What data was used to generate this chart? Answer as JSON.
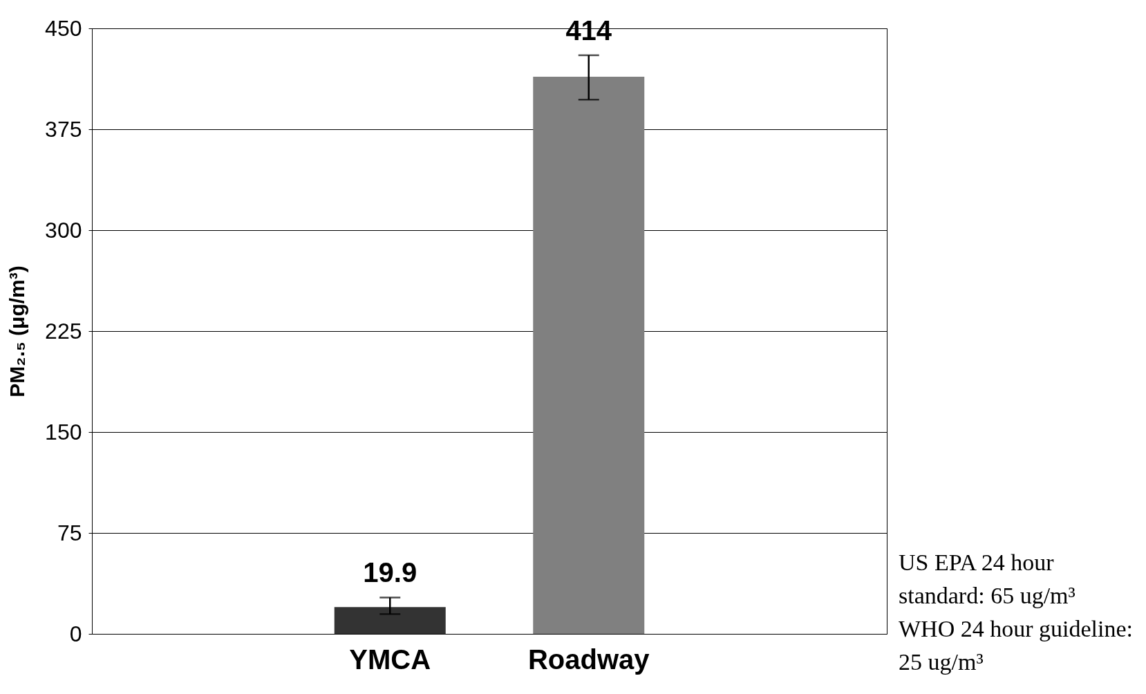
{
  "chart_data": {
    "type": "bar",
    "ylabel": "PM₂.₅ (μg/m³)",
    "categories": [
      null,
      "YMCA",
      "Roadway",
      null
    ],
    "values": [
      null,
      19.9,
      414,
      null
    ],
    "colors": [
      null,
      "#333333",
      "#808080",
      null
    ],
    "errors": [
      null,
      [
        14.7,
        27
      ],
      [
        397,
        430
      ],
      null
    ],
    "data_labels": true,
    "ylim": [
      0,
      450
    ],
    "yticks": [
      0,
      75,
      150,
      225,
      300,
      375,
      450
    ],
    "grid": "y",
    "annotations": [
      "US EPA 24 hour standard: 65 ug/m³",
      "WHO 24 hour guideline: 25 ug/m³"
    ]
  }
}
